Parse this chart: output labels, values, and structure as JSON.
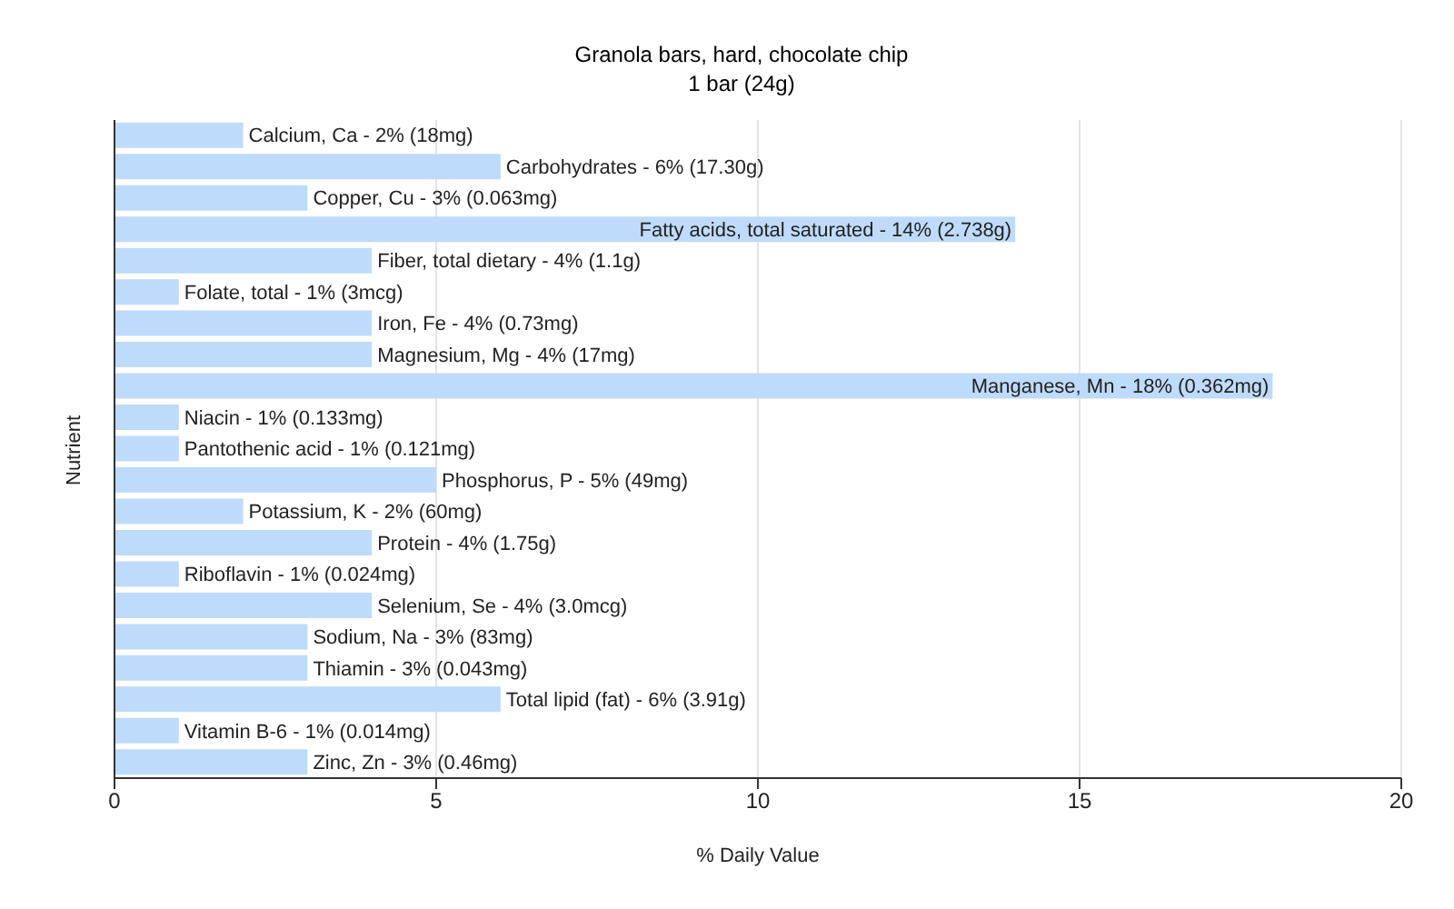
{
  "chart_data": {
    "type": "bar",
    "orientation": "horizontal",
    "title": "Granola bars, hard, chocolate chip",
    "subtitle": "1 bar (24g)",
    "xlabel": "% Daily Value",
    "ylabel": "Nutrient",
    "categories": [
      "Calcium, Ca - 2% (18mg)",
      "Carbohydrates - 6% (17.30g)",
      "Copper, Cu - 3% (0.063mg)",
      "Fatty acids, total saturated - 14% (2.738g)",
      "Fiber, total dietary - 4% (1.1g)",
      "Folate, total - 1% (3mcg)",
      "Iron, Fe - 4% (0.73mg)",
      "Magnesium, Mg - 4% (17mg)",
      "Manganese, Mn - 18% (0.362mg)",
      "Niacin - 1% (0.133mg)",
      "Pantothenic acid - 1% (0.121mg)",
      "Phosphorus, P - 5% (49mg)",
      "Potassium, K - 2% (60mg)",
      "Protein - 4% (1.75g)",
      "Riboflavin - 1% (0.024mg)",
      "Selenium, Se - 4% (3.0mcg)",
      "Sodium, Na - 3% (83mg)",
      "Thiamin - 3% (0.043mg)",
      "Total lipid (fat) - 6% (3.91g)",
      "Vitamin B-6 - 1% (0.014mg)",
      "Zinc, Zn - 3% (0.46mg)"
    ],
    "values": [
      2,
      6,
      3,
      14,
      4,
      1,
      4,
      4,
      18,
      1,
      1,
      5,
      2,
      4,
      1,
      4,
      3,
      3,
      6,
      1,
      3
    ],
    "color": "#bfdbfb",
    "xlim": [
      0,
      20
    ],
    "xticks": [
      0,
      5,
      10,
      15,
      20
    ],
    "grid": "x",
    "tick_labels": "x"
  }
}
